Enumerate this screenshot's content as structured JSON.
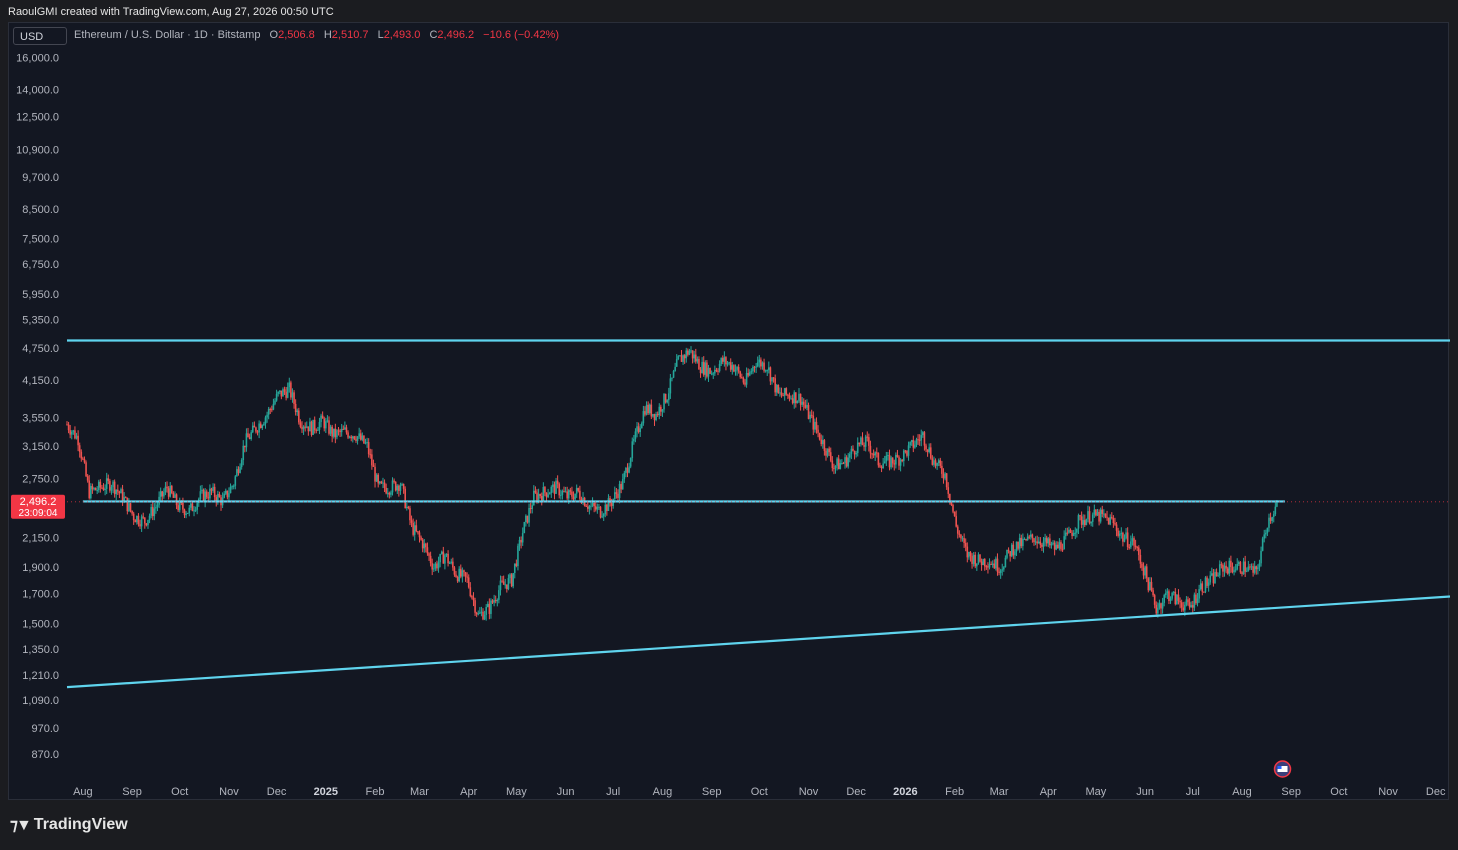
{
  "header": {
    "caption": "RaoulGMI created with TradingView.com, Aug 27, 2026 00:50 UTC"
  },
  "toolbar": {
    "currency": "USD"
  },
  "legend": {
    "symbol": "Ethereum / U.S. Dollar · 1D · Bitstamp",
    "o_label": "O",
    "o": "2,506.8",
    "h_label": "H",
    "h": "2,510.7",
    "l_label": "L",
    "l": "2,493.0",
    "c_label": "C",
    "c": "2,496.2",
    "change": "−10.6 (−0.42%)"
  },
  "price_tag": {
    "price": "2,496.2",
    "countdown": "23:09:04"
  },
  "footer": {
    "brand": "TradingView"
  },
  "colors": {
    "background": "#131722",
    "up": "#26a69a",
    "down": "#ef5350",
    "trendline": "#5fd4ee",
    "axis_text": "#b2b5be",
    "price_tag": "#f23645"
  },
  "icons": {
    "flag": "us-flag-icon"
  },
  "chart_data": {
    "type": "candlestick",
    "y_scale": "log",
    "ylim": [
      780,
      17000
    ],
    "y_ticks": [
      "16,000.0",
      "14,000.0",
      "12,500.0",
      "10,900.0",
      "9,700.0",
      "8,500.0",
      "7,500.0",
      "6,750.0",
      "5,950.0",
      "5,350.0",
      "4,750.0",
      "4,150.0",
      "3,550.0",
      "3,150.0",
      "2,750.0",
      "2,150.0",
      "1,900.0",
      "1,700.0",
      "1,500.0",
      "1,350.0",
      "1,210.0",
      "1,090.0",
      "970.0",
      "870.0"
    ],
    "y_tick_values": [
      16000,
      14000,
      12500,
      10900,
      9700,
      8500,
      7500,
      6750,
      5950,
      5350,
      4750,
      4150,
      3550,
      3150,
      2750,
      2150,
      1900,
      1700,
      1500,
      1350,
      1210,
      1090,
      970,
      870
    ],
    "x_ticks": [
      "Aug",
      "Sep",
      "Oct",
      "Nov",
      "Dec",
      "2025",
      "Feb",
      "Mar",
      "Apr",
      "May",
      "Jun",
      "Jul",
      "Aug",
      "Sep",
      "Oct",
      "Nov",
      "Dec",
      "2026",
      "Feb",
      "Mar",
      "Apr",
      "May",
      "Jun",
      "Jul",
      "Aug",
      "Sep",
      "Oct",
      "Nov",
      "Dec"
    ],
    "x_tick_dates": [
      "2024-08-01",
      "2024-09-01",
      "2024-10-01",
      "2024-11-01",
      "2024-12-01",
      "2025-01-01",
      "2025-02-01",
      "2025-03-01",
      "2025-04-01",
      "2025-05-01",
      "2025-06-01",
      "2025-07-01",
      "2025-08-01",
      "2025-09-01",
      "2025-10-01",
      "2025-11-01",
      "2025-12-01",
      "2026-01-01",
      "2026-02-01",
      "2026-03-01",
      "2026-04-01",
      "2026-05-01",
      "2026-06-01",
      "2026-07-01",
      "2026-08-01",
      "2026-09-01",
      "2026-10-01",
      "2026-11-01",
      "2026-12-01"
    ],
    "x_range": [
      "2024-07-22",
      "2026-12-10"
    ],
    "current_price": 2496.2,
    "trendlines": [
      {
        "name": "",
        "from": [
          "2024-07-22",
          4900
        ],
        "to": [
          "2026-12-10",
          4900
        ]
      },
      {
        "name": "",
        "from": [
          "2024-08-01",
          2500
        ],
        "to": [
          "2026-08-28",
          2500
        ]
      },
      {
        "name": "",
        "from": [
          "2024-07-22",
          1150
        ],
        "to": [
          "2026-12-10",
          1680
        ]
      }
    ],
    "weekly_closes": [
      [
        "2024-07-22",
        3450
      ],
      [
        "2024-07-29",
        3250
      ],
      [
        "2024-08-05",
        2600
      ],
      [
        "2024-08-12",
        2650
      ],
      [
        "2024-08-19",
        2700
      ],
      [
        "2024-08-26",
        2550
      ],
      [
        "2024-09-02",
        2350
      ],
      [
        "2024-09-09",
        2300
      ],
      [
        "2024-09-16",
        2450
      ],
      [
        "2024-09-23",
        2650
      ],
      [
        "2024-09-30",
        2450
      ],
      [
        "2024-10-07",
        2400
      ],
      [
        "2024-10-14",
        2550
      ],
      [
        "2024-10-21",
        2600
      ],
      [
        "2024-10-28",
        2500
      ],
      [
        "2024-11-04",
        2700
      ],
      [
        "2024-11-11",
        3200
      ],
      [
        "2024-11-18",
        3400
      ],
      [
        "2024-11-25",
        3600
      ],
      [
        "2024-12-02",
        3900
      ],
      [
        "2024-12-09",
        4000
      ],
      [
        "2024-12-16",
        3500
      ],
      [
        "2024-12-23",
        3400
      ],
      [
        "2024-12-30",
        3500
      ],
      [
        "2025-01-06",
        3300
      ],
      [
        "2025-01-13",
        3350
      ],
      [
        "2025-01-20",
        3300
      ],
      [
        "2025-01-27",
        3150
      ],
      [
        "2025-02-03",
        2650
      ],
      [
        "2025-02-10",
        2650
      ],
      [
        "2025-02-17",
        2700
      ],
      [
        "2025-02-24",
        2250
      ],
      [
        "2025-03-03",
        2100
      ],
      [
        "2025-03-10",
        1900
      ],
      [
        "2025-03-17",
        2000
      ],
      [
        "2025-03-24",
        1850
      ],
      [
        "2025-03-31",
        1800
      ],
      [
        "2025-04-07",
        1550
      ],
      [
        "2025-04-14",
        1600
      ],
      [
        "2025-04-21",
        1750
      ],
      [
        "2025-04-28",
        1800
      ],
      [
        "2025-05-05",
        2200
      ],
      [
        "2025-05-12",
        2550
      ],
      [
        "2025-05-19",
        2600
      ],
      [
        "2025-05-26",
        2650
      ],
      [
        "2025-06-02",
        2550
      ],
      [
        "2025-06-09",
        2600
      ],
      [
        "2025-06-16",
        2450
      ],
      [
        "2025-06-23",
        2400
      ],
      [
        "2025-06-30",
        2500
      ],
      [
        "2025-07-07",
        2700
      ],
      [
        "2025-07-14",
        3200
      ],
      [
        "2025-07-21",
        3700
      ],
      [
        "2025-07-28",
        3600
      ],
      [
        "2025-08-04",
        3900
      ],
      [
        "2025-08-11",
        4500
      ],
      [
        "2025-08-18",
        4700
      ],
      [
        "2025-08-25",
        4400
      ],
      [
        "2025-09-01",
        4300
      ],
      [
        "2025-09-08",
        4500
      ],
      [
        "2025-09-15",
        4400
      ],
      [
        "2025-09-22",
        4100
      ],
      [
        "2025-09-29",
        4500
      ],
      [
        "2025-10-06",
        4400
      ],
      [
        "2025-10-13",
        3900
      ],
      [
        "2025-10-20",
        3900
      ],
      [
        "2025-10-27",
        3850
      ],
      [
        "2025-11-03",
        3500
      ],
      [
        "2025-11-10",
        3200
      ],
      [
        "2025-11-17",
        2900
      ],
      [
        "2025-11-24",
        2950
      ],
      [
        "2025-12-01",
        3150
      ],
      [
        "2025-12-08",
        3200
      ],
      [
        "2025-12-15",
        2950
      ],
      [
        "2025-12-22",
        2950
      ],
      [
        "2025-12-29",
        3000
      ],
      [
        "2026-01-05",
        3150
      ],
      [
        "2026-01-12",
        3300
      ],
      [
        "2026-01-19",
        2950
      ],
      [
        "2026-01-26",
        2800
      ],
      [
        "2026-02-02",
        2250
      ],
      [
        "2026-02-09",
        2000
      ],
      [
        "2026-02-16",
        1950
      ],
      [
        "2026-02-23",
        1950
      ],
      [
        "2026-03-02",
        1900
      ],
      [
        "2026-03-09",
        2050
      ],
      [
        "2026-03-16",
        2100
      ],
      [
        "2026-03-23",
        2150
      ],
      [
        "2026-03-30",
        2100
      ],
      [
        "2026-04-06",
        2050
      ],
      [
        "2026-04-13",
        2150
      ],
      [
        "2026-04-20",
        2300
      ],
      [
        "2026-04-27",
        2350
      ],
      [
        "2026-05-04",
        2350
      ],
      [
        "2026-05-11",
        2300
      ],
      [
        "2026-05-18",
        2150
      ],
      [
        "2026-05-25",
        2100
      ],
      [
        "2026-06-01",
        1850
      ],
      [
        "2026-06-08",
        1600
      ],
      [
        "2026-06-15",
        1700
      ],
      [
        "2026-06-22",
        1650
      ],
      [
        "2026-06-29",
        1600
      ],
      [
        "2026-07-06",
        1750
      ],
      [
        "2026-07-13",
        1800
      ],
      [
        "2026-07-20",
        1900
      ],
      [
        "2026-07-27",
        1900
      ],
      [
        "2026-08-03",
        1900
      ],
      [
        "2026-08-10",
        1850
      ],
      [
        "2026-08-17",
        2300
      ],
      [
        "2026-08-24",
        2496
      ]
    ]
  }
}
